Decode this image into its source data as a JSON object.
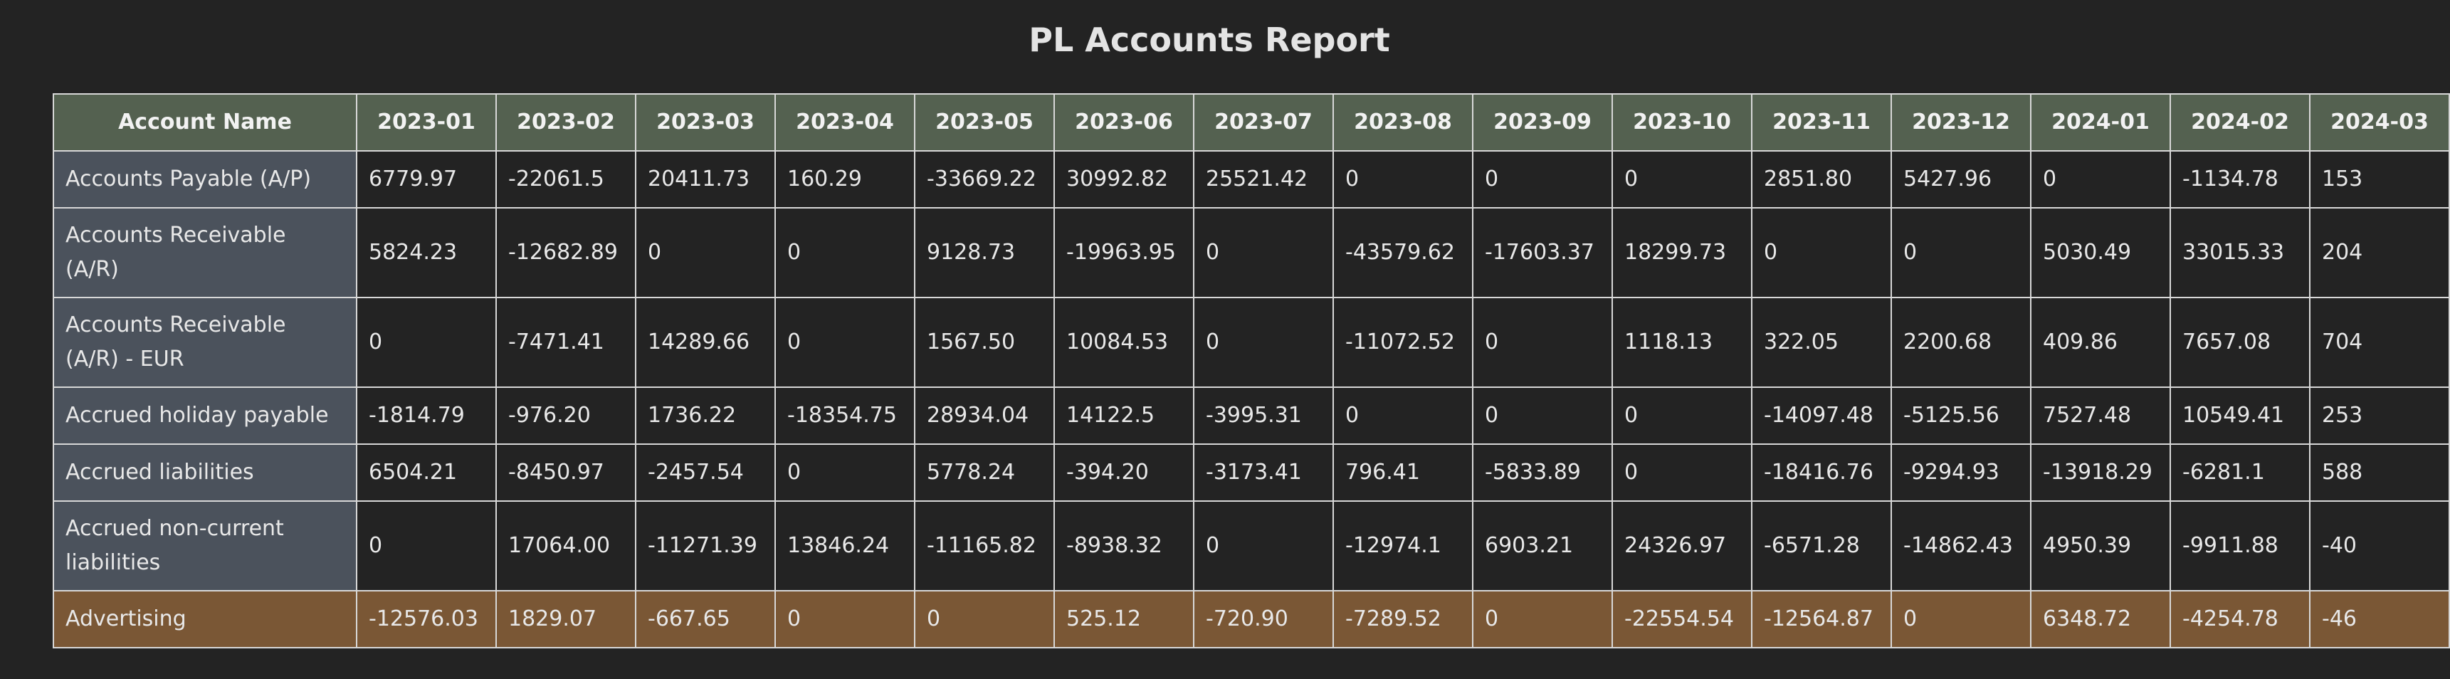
{
  "report": {
    "title": "PL Accounts Report"
  },
  "colors": {
    "background": "#232323",
    "header_bg": "#546150",
    "name_col_bg": "#4b525c",
    "highlight_row_bg": "#7a5735",
    "border": "#d8d8d8"
  },
  "table": {
    "headers": [
      "Account Name",
      "2023-01",
      "2023-02",
      "2023-03",
      "2023-04",
      "2023-05",
      "2023-06",
      "2023-07",
      "2023-08",
      "2023-09",
      "2023-10",
      "2023-11",
      "2023-12",
      "2024-01",
      "2024-02",
      "2024-03"
    ],
    "rows": [
      {
        "name": "Accounts Payable (A/P)",
        "values": [
          "6779.97",
          "-22061.5",
          "20411.73",
          "160.29",
          "-33669.22",
          "30992.82",
          "25521.42",
          "0",
          "0",
          "0",
          "2851.80",
          "5427.96",
          "0",
          "-1134.78",
          "153"
        ]
      },
      {
        "name": "Accounts Receivable (A/R)",
        "values": [
          "5824.23",
          "-12682.89",
          "0",
          "0",
          "9128.73",
          "-19963.95",
          "0",
          "-43579.62",
          "-17603.37",
          "18299.73",
          "0",
          "0",
          "5030.49",
          "33015.33",
          "204"
        ]
      },
      {
        "name": "Accounts Receivable (A/R) - EUR",
        "values": [
          "0",
          "-7471.41",
          "14289.66",
          "0",
          "1567.50",
          "10084.53",
          "0",
          "-11072.52",
          "0",
          "1118.13",
          "322.05",
          "2200.68",
          "409.86",
          "7657.08",
          "704"
        ]
      },
      {
        "name": "Accrued holiday payable",
        "values": [
          "-1814.79",
          "-976.20",
          "1736.22",
          "-18354.75",
          "28934.04",
          "14122.5",
          "-3995.31",
          "0",
          "0",
          "0",
          "-14097.48",
          "-5125.56",
          "7527.48",
          "10549.41",
          "253"
        ]
      },
      {
        "name": "Accrued liabilities",
        "values": [
          "6504.21",
          "-8450.97",
          "-2457.54",
          "0",
          "5778.24",
          "-394.20",
          "-3173.41",
          "796.41",
          "-5833.89",
          "0",
          "-18416.76",
          "-9294.93",
          "-13918.29",
          "-6281.1",
          "588"
        ]
      },
      {
        "name": "Accrued non-current liabilities",
        "values": [
          "0",
          "17064.00",
          "-11271.39",
          "13846.24",
          "-11165.82",
          "-8938.32",
          "0",
          "-12974.1",
          "6903.21",
          "24326.97",
          "-6571.28",
          "-14862.43",
          "4950.39",
          "-9911.88",
          "-40"
        ]
      },
      {
        "name": "Advertising",
        "values": [
          "-12576.03",
          "1829.07",
          "-667.65",
          "0",
          "0",
          "525.12",
          "-720.90",
          "-7289.52",
          "0",
          "-22554.54",
          "-12564.87",
          "0",
          "6348.72",
          "-4254.78",
          "-46"
        ]
      }
    ]
  }
}
